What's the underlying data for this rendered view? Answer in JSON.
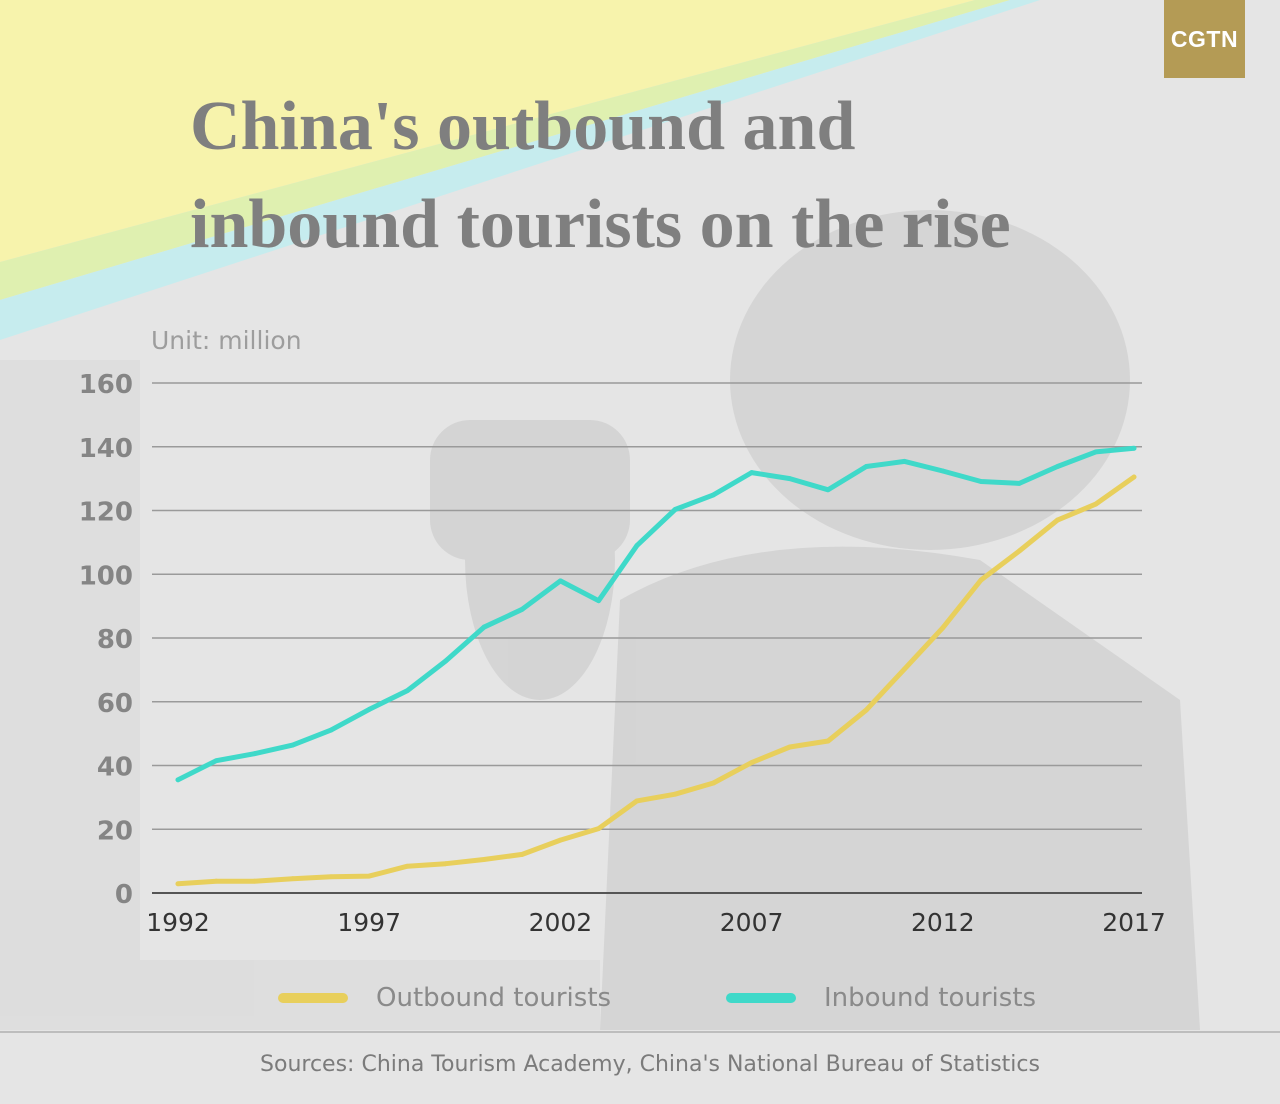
{
  "brand": {
    "logo_text": "CGTN",
    "logo_color": "#b49b55"
  },
  "title_lines": [
    "China's outbound and",
    "inbound tourists on the rise"
  ],
  "chart_data": {
    "type": "line",
    "unit_label": "Unit: million",
    "x": [
      1992,
      1993,
      1994,
      1995,
      1996,
      1997,
      1998,
      1999,
      2000,
      2001,
      2002,
      2003,
      2004,
      2005,
      2006,
      2007,
      2008,
      2009,
      2010,
      2011,
      2012,
      2013,
      2014,
      2015,
      2016,
      2017
    ],
    "x_tick_labels": [
      "1992",
      "1997",
      "2002",
      "2007",
      "2012",
      "2017"
    ],
    "y_tick_labels": [
      "0",
      "20",
      "40",
      "60",
      "80",
      "100",
      "120",
      "140",
      "160"
    ],
    "ylim": [
      0,
      160
    ],
    "grid": true,
    "series": [
      {
        "name": "Outbound tourists",
        "color": "#e8cf5c",
        "values": [
          2.9,
          3.7,
          3.7,
          4.5,
          5.1,
          5.3,
          8.4,
          9.2,
          10.5,
          12.1,
          16.6,
          20.2,
          28.9,
          31.0,
          34.5,
          40.9,
          45.8,
          47.7,
          57.4,
          70.3,
          83.2,
          98.2,
          107.3,
          117.0,
          122.0,
          130.5
        ]
      },
      {
        "name": "Inbound tourists",
        "color": "#3fd9c9",
        "values": [
          35.5,
          41.5,
          43.7,
          46.4,
          51.1,
          57.6,
          63.5,
          72.8,
          83.4,
          89.0,
          97.9,
          91.7,
          109.0,
          120.3,
          124.9,
          131.9,
          130.0,
          126.5,
          133.8,
          135.4,
          132.4,
          129.1,
          128.5,
          133.8,
          138.4,
          139.5
        ]
      }
    ],
    "legend": "bottom"
  },
  "sources": "Sources: China Tourism Academy, China's National Bureau of Statistics"
}
